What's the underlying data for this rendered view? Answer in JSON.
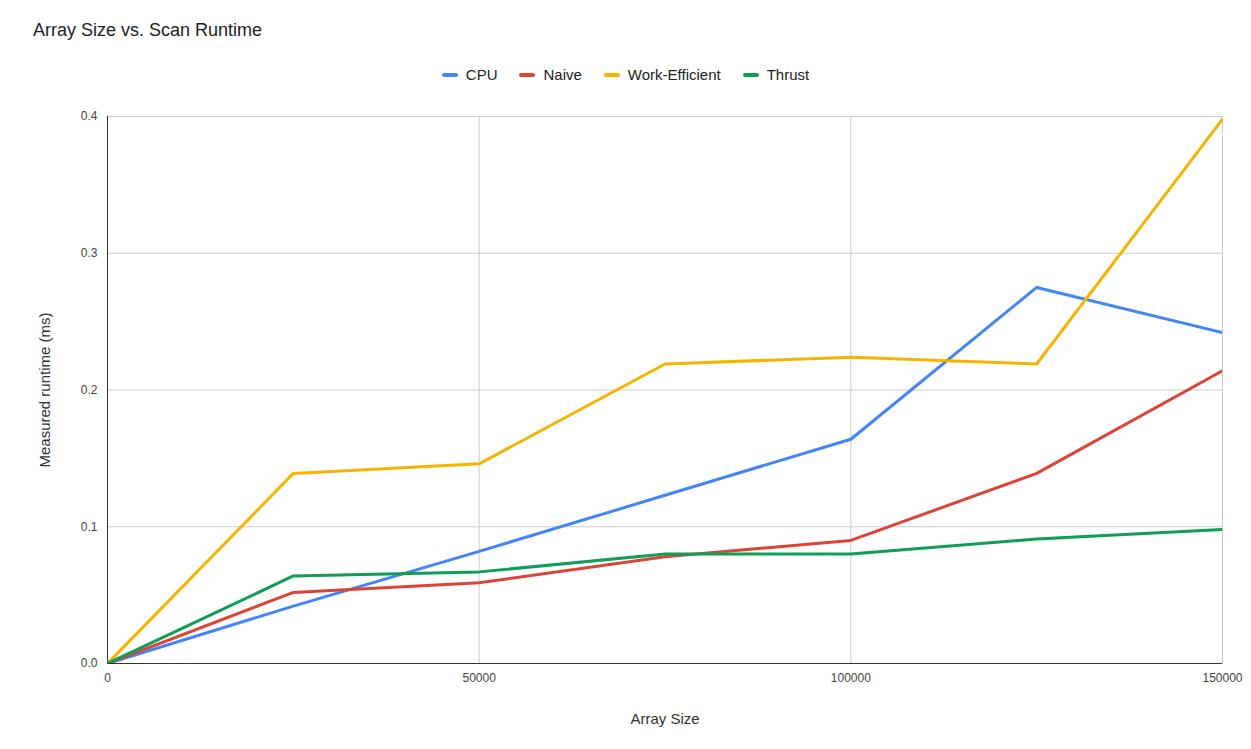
{
  "chart_data": {
    "type": "line",
    "title": "Array Size vs. Scan Runtime",
    "x_label": "Array Size",
    "y_label": "Measured runtime (ms)",
    "x": [
      0,
      25000,
      50000,
      75000,
      100000,
      125000,
      150000
    ],
    "series": [
      {
        "name": "CPU",
        "color": "#4285f4",
        "values": [
          0,
          0.042,
          0.082,
          0.123,
          0.164,
          0.275,
          0.242
        ]
      },
      {
        "name": "Naive",
        "color": "#db4437",
        "values": [
          0,
          0.052,
          0.059,
          0.078,
          0.09,
          0.139,
          0.214
        ]
      },
      {
        "name": "Work-Efficient",
        "color": "#f4b400",
        "values": [
          0,
          0.139,
          0.146,
          0.219,
          0.224,
          0.219,
          0.398
        ]
      },
      {
        "name": "Thrust",
        "color": "#0f9d58",
        "values": [
          0,
          0.064,
          0.067,
          0.08,
          0.08,
          0.091,
          0.098
        ]
      }
    ],
    "xlim": [
      0,
      150000
    ],
    "xticks": [
      0,
      50000,
      100000,
      150000
    ],
    "ylim": [
      0,
      0.4
    ],
    "yticks": [
      {
        "value": 0,
        "label": "0.0"
      },
      0.1,
      0.2,
      0.3,
      0.4
    ],
    "grid": true,
    "legend": "top"
  }
}
